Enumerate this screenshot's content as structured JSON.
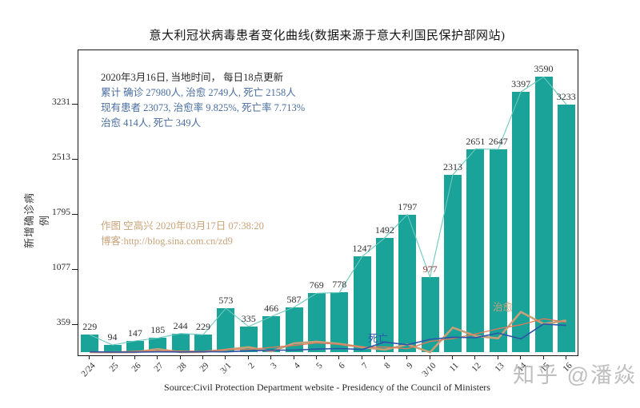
{
  "page": {
    "title": "意大利冠状病毒患者变化曲线(数据来源于意大利国民保护部网站)",
    "source_note": "Source:Civil Protection Department website - Presidency of the Council of Ministers",
    "watermark": "知乎 @潘焱"
  },
  "annotations": {
    "update_line": "2020年3月16日, 当地时间， 每日18点更新",
    "cumulative_line": "累计 确诊 27980人, 治愈 2749人, 死亡 2158人",
    "current_line": "现有患者 23073, 治愈率 9.825%, 死亡率 7.713%",
    "daily_line": "治愈 414人, 死亡 349人",
    "author_line": "作图 空高兴 2020年03月17日 07:38:20",
    "blog_line": "博客:http://blog.sina.com.cn/zd9",
    "deaths_label": "死亡",
    "cured_label": "治愈"
  },
  "chart_data": {
    "type": "bar",
    "title": "意大利冠状病毒患者变化曲线(数据来源于意大利国民保护部网站)",
    "ylabel": "新增确诊病例",
    "xlabel": "",
    "categories": [
      "2/24",
      "25",
      "26",
      "27",
      "28",
      "29",
      "3/1",
      "2",
      "3",
      "4",
      "5",
      "6",
      "7",
      "8",
      "9",
      "3/10",
      "11",
      "12",
      "13",
      "14",
      "15",
      "16"
    ],
    "series": [
      {
        "name": "新增确诊",
        "type": "bar",
        "color": "#1aa398",
        "connect_color": "#6ec8be",
        "values": [
          229,
          94,
          147,
          185,
          244,
          229,
          573,
          335,
          466,
          587,
          769,
          778,
          1247,
          1492,
          1797,
          977,
          2313,
          2651,
          2647,
          3397,
          3590,
          3233
        ]
      },
      {
        "name": "死亡(每日)",
        "type": "line",
        "color": "#2e54a8",
        "width": 1.6,
        "values": [
          6,
          3,
          2,
          5,
          4,
          8,
          5,
          18,
          27,
          28,
          41,
          49,
          36,
          133,
          97,
          168,
          196,
          189,
          250,
          175,
          368,
          349
        ]
      },
      {
        "name": "治愈(每日)",
        "type": "line",
        "color": "#c8a078",
        "width": 2.6,
        "values": [
          1,
          0,
          1,
          42,
          1,
          4,
          33,
          66,
          11,
          116,
          138,
          109,
          66,
          33,
          102,
          0,
          321,
          213,
          181,
          527,
          369,
          414
        ]
      },
      {
        "name": "治愈(趋势)",
        "type": "line",
        "color": "#e0785a",
        "width": 1.3,
        "values": [
          1,
          1,
          14,
          15,
          16,
          13,
          34,
          37,
          64,
          88,
          121,
          104,
          69,
          67,
          45,
          141,
          178,
          238,
          307,
          359,
          437,
          392
        ]
      }
    ],
    "yticks": [
      359,
      1077,
      1795,
      2513,
      3231
    ],
    "ylim": [
      -40,
      3938
    ],
    "grid": false,
    "legend_position": "none",
    "bar_label_color": "#303030",
    "bar_label_overrides": {
      "15": "#8b3232"
    }
  }
}
